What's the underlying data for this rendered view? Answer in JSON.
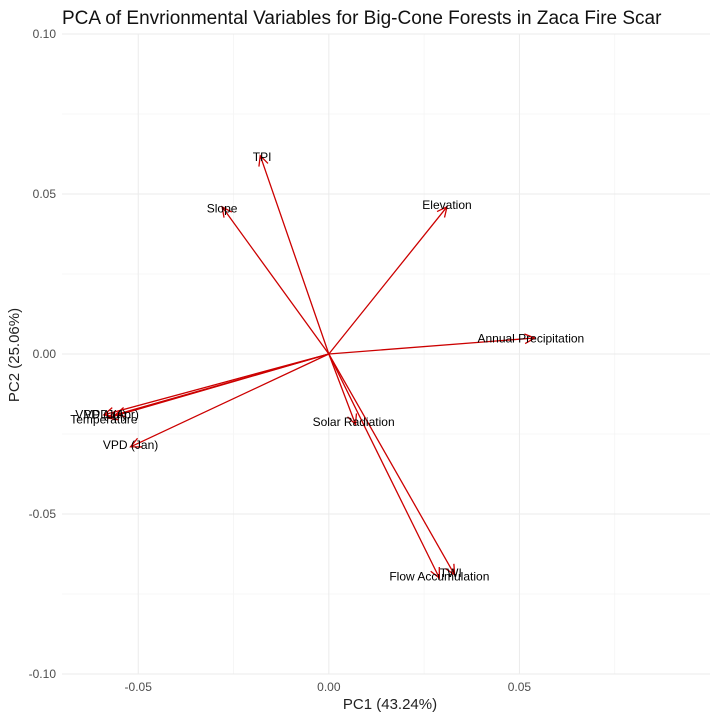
{
  "chart_data": {
    "type": "biplot",
    "title": "PCA of Envrionmental Variables for Big-Cone Forests in Zaca Fire Scar",
    "xlabel": "PC1 (43.24%)",
    "ylabel": "PC2 (25.06%)",
    "xlim": [
      -0.07,
      0.1
    ],
    "ylim": [
      -0.1,
      0.1
    ],
    "x_ticks": [
      -0.05,
      0.0,
      0.05
    ],
    "x_tick_labels": [
      "-0.05",
      "0.00",
      "0.05"
    ],
    "y_ticks": [
      -0.1,
      -0.05,
      0.0,
      0.05,
      0.1
    ],
    "y_tick_labels": [
      "-0.10",
      "-0.05",
      "0.00",
      "0.05",
      "0.10"
    ],
    "grid": true,
    "arrow_color": "#cc0000",
    "vectors": [
      {
        "label": "TPI",
        "x": -0.018,
        "y": 0.062,
        "lx": -0.0175,
        "ly": 0.0615
      },
      {
        "label": "Slope",
        "x": -0.028,
        "y": 0.046,
        "lx": -0.028,
        "ly": 0.0455
      },
      {
        "label": "Elevation",
        "x": 0.031,
        "y": 0.046,
        "lx": 0.031,
        "ly": 0.0465
      },
      {
        "label": "Annual Precipitation",
        "x": 0.054,
        "y": 0.005,
        "lx": 0.053,
        "ly": 0.0048
      },
      {
        "label": "Solar Radiation",
        "x": 0.007,
        "y": -0.022,
        "lx": 0.0065,
        "ly": -0.0213
      },
      {
        "label": "TWI",
        "x": 0.033,
        "y": -0.069,
        "lx": 0.032,
        "ly": -0.0685
      },
      {
        "label": "Flow Accumulation",
        "x": 0.029,
        "y": -0.07,
        "lx": 0.029,
        "ly": -0.0695
      },
      {
        "label": "VPD (Jan)",
        "x": -0.052,
        "y": -0.029,
        "lx": -0.052,
        "ly": -0.0285
      },
      {
        "label": "Temperature",
        "x": -0.058,
        "y": -0.02,
        "lx": -0.059,
        "ly": -0.0205
      },
      {
        "label": "VPD (Jul)",
        "x": -0.059,
        "y": -0.019,
        "lx": -0.0598,
        "ly": -0.0189
      },
      {
        "label": "VPD (Apr)",
        "x": -0.056,
        "y": -0.019,
        "lx": -0.057,
        "ly": -0.0189
      }
    ]
  }
}
